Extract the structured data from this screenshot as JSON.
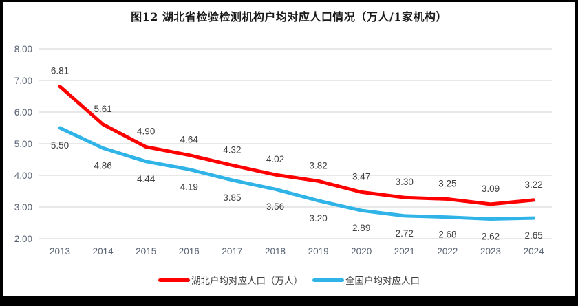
{
  "chart_data": {
    "type": "line",
    "title": "图12 湖北省检验检测机构户均对应人口情况（万人/1家机构）",
    "categories": [
      "2013",
      "2014",
      "2015",
      "2016",
      "2017",
      "2018",
      "2019",
      "2020",
      "2021",
      "2022",
      "2023",
      "2024"
    ],
    "series": [
      {
        "name": "湖北户均对应人口（万人）",
        "color": "#FE0000",
        "label_position": "above",
        "values": [
          6.81,
          5.61,
          4.9,
          4.64,
          4.32,
          4.02,
          3.82,
          3.47,
          3.3,
          3.25,
          3.09,
          3.22
        ]
      },
      {
        "name": "全国户均对应人口",
        "color": "#30B4E8",
        "label_position": "below",
        "values": [
          5.5,
          4.86,
          4.44,
          4.19,
          3.85,
          3.56,
          3.2,
          2.89,
          2.72,
          2.68,
          2.62,
          2.65
        ]
      }
    ],
    "y_axis": {
      "min": 2.0,
      "max": 8.0,
      "step": 1.0,
      "tick_format": "0.00"
    },
    "grid": true,
    "legend_position": "bottom",
    "data_labels": true,
    "colors": {
      "gridline": "#D9D9D9",
      "axis_label": "#5A6474",
      "data_label": "#404040",
      "title": "#1A1A1A",
      "plot_background": "#FFFFFF",
      "frame": "#000000"
    }
  }
}
